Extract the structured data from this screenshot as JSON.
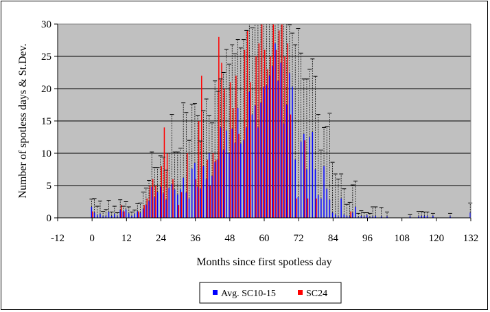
{
  "chart_data": {
    "type": "bar",
    "title": "",
    "xlabel": "Months since first spotless day",
    "ylabel": "Number of spotless days & St.Dev.",
    "xlim": [
      -12,
      132
    ],
    "ylim": [
      0,
      30
    ],
    "x_ticks": [
      -12,
      0,
      12,
      24,
      36,
      48,
      60,
      72,
      84,
      96,
      108,
      120,
      132
    ],
    "y_ticks": [
      0,
      5,
      10,
      15,
      20,
      25,
      30
    ],
    "grid": "horizontal",
    "legend": "bottom",
    "background_color": "#c0c0c0",
    "series": [
      {
        "name": "Avg. SC10-15",
        "color": "#0000ff",
        "error_bars": true,
        "x": [
          0,
          1,
          2,
          3,
          4,
          5,
          6,
          7,
          8,
          9,
          10,
          11,
          12,
          13,
          14,
          15,
          16,
          17,
          18,
          19,
          20,
          21,
          22,
          23,
          24,
          25,
          26,
          27,
          28,
          29,
          30,
          31,
          32,
          33,
          34,
          35,
          36,
          37,
          38,
          39,
          40,
          41,
          42,
          43,
          44,
          45,
          46,
          47,
          48,
          49,
          50,
          51,
          52,
          53,
          54,
          55,
          56,
          57,
          58,
          59,
          60,
          61,
          62,
          63,
          64,
          65,
          66,
          67,
          68,
          69,
          70,
          71,
          72,
          73,
          74,
          75,
          76,
          77,
          78,
          79,
          80,
          81,
          82,
          83,
          84,
          85,
          86,
          87,
          88,
          89,
          90,
          91,
          92,
          93,
          94,
          95,
          96,
          97,
          98,
          99,
          100,
          101,
          102,
          103,
          104,
          105,
          106,
          107,
          108,
          109,
          110,
          111,
          112,
          113,
          114,
          115,
          116,
          117,
          118,
          119,
          120,
          121,
          122,
          123,
          124,
          125,
          126,
          127,
          128,
          129,
          130,
          131,
          132
        ],
        "values": [
          1.7,
          0.8,
          0.4,
          0.6,
          0.2,
          0.3,
          0.9,
          0.3,
          0.6,
          0.2,
          1.2,
          1.0,
          1.3,
          0.7,
          0.3,
          0.6,
          1.0,
          0.8,
          1.4,
          2.0,
          2.6,
          4.8,
          3.2,
          4.0,
          4.8,
          3.8,
          2.8,
          4.6,
          5.2,
          4.4,
          3.6,
          4.4,
          6.2,
          3.9,
          3.0,
          7.6,
          8.5,
          4.8,
          4.5,
          8.0,
          6.0,
          10.0,
          6.5,
          8.6,
          9.0,
          14.0,
          10.5,
          13.5,
          10.0,
          13.8,
          11.6,
          17.0,
          11.5,
          12.0,
          14.0,
          19.5,
          16.0,
          17.4,
          14.0,
          17.8,
          20.2,
          20.5,
          22.0,
          23.5,
          27.0,
          21.2,
          24.0,
          14.6,
          17.5,
          22.4,
          20.3,
          9.0,
          3.2,
          11.8,
          13.0,
          7.5,
          12.5,
          13.3,
          7.5,
          3.5,
          3.0,
          8.0,
          4.5,
          2.8,
          0.8,
          0.5,
          0.2,
          3.0,
          0.5,
          0.3,
          0.2,
          0.8,
          1.7,
          0.1,
          0.3,
          0.2,
          0.4,
          0.1,
          0.2,
          0.3,
          0,
          0.2,
          0,
          0.2,
          0,
          0,
          0,
          0,
          0,
          0,
          0,
          0.2,
          0,
          0,
          0.2,
          0.3,
          0.3,
          0.3,
          0,
          0.3,
          0,
          0,
          0,
          0,
          0,
          0.2,
          0,
          0,
          0,
          0,
          0,
          0,
          0.8
        ],
        "errors": [
          1.2,
          2.2,
          1.4,
          2.0,
          0.8,
          1.0,
          1.8,
          0.6,
          1.2,
          0.6,
          1.6,
          0.8,
          1.2,
          1.0,
          0.6,
          0.6,
          1.2,
          1.5,
          2.6,
          2.6,
          3.2,
          5.4,
          4.6,
          3.8,
          4.8,
          5.6,
          4.6,
          5.4,
          10.8,
          5.8,
          6.6,
          6.4,
          11.6,
          12.4,
          9.0,
          10.0,
          9.2,
          11.0,
          7.4,
          8.6,
          12.4,
          5.8,
          8.2,
          12.6,
          10.6,
          7.5,
          12.0,
          12.6,
          13.8,
          13.0,
          13.8,
          10.6,
          14.8,
          15.6,
          15.0,
          11.6,
          13.4,
          14.6,
          16.2,
          14.2,
          15.3,
          13.2,
          10.5,
          14.6,
          5.0,
          12.6,
          11.8,
          18.8,
          13.0,
          7.5,
          8.3,
          17.8,
          26.1,
          13.7,
          8.5,
          14.0,
          10.5,
          11.3,
          14.4,
          12.5,
          7.5,
          6.0,
          9.6,
          13.4,
          7.8,
          6.3,
          5.8,
          3.8,
          4.0,
          1.8,
          2.2,
          4.3,
          4.0,
          0.6,
          0.8,
          0.6,
          0.4,
          0.6,
          1.5,
          1.4,
          0,
          1.4,
          0,
          0.7,
          0,
          0,
          0,
          0,
          0,
          0,
          0,
          0.3,
          0,
          0,
          0.8,
          0.7,
          0.6,
          0.6,
          0,
          0.4,
          0,
          0,
          0,
          0,
          0,
          0.5,
          0,
          0,
          0,
          0,
          0,
          0,
          1.5
        ]
      },
      {
        "name": "SC24",
        "color": "#ff0000",
        "x": [
          0,
          1,
          2,
          3,
          4,
          5,
          6,
          7,
          8,
          9,
          10,
          11,
          12,
          13,
          14,
          15,
          16,
          17,
          18,
          19,
          20,
          21,
          22,
          23,
          24,
          25,
          26,
          27,
          28,
          29,
          30,
          31,
          32,
          33,
          34,
          35,
          36,
          37,
          38,
          39,
          40,
          41,
          42,
          43,
          44,
          45,
          46,
          47,
          48,
          49,
          50,
          51,
          52,
          53,
          54,
          55,
          56,
          57,
          58,
          59,
          60,
          61,
          62,
          63,
          64,
          65,
          66,
          67,
          68,
          69,
          70,
          71,
          72,
          73,
          74,
          75,
          76,
          77,
          78,
          79,
          80,
          81,
          82,
          83,
          84,
          85,
          86,
          87,
          88,
          89,
          90,
          91,
          92,
          93,
          94,
          95,
          96,
          97,
          98,
          99,
          100,
          101,
          102,
          103,
          104,
          105,
          106,
          107,
          108,
          109,
          110,
          111,
          112,
          113,
          114,
          115,
          116,
          117,
          118,
          119,
          120,
          121,
          122,
          123,
          124,
          125,
          126,
          127,
          128,
          129,
          130,
          131,
          132
        ],
        "values": [
          1,
          0,
          0,
          0,
          0,
          0,
          0,
          0,
          0,
          0,
          2,
          1,
          0,
          0,
          0,
          0,
          1,
          0,
          2,
          3,
          5,
          6,
          5,
          0,
          8,
          14,
          10,
          0,
          6,
          0,
          2,
          4,
          0,
          10,
          0,
          0,
          6,
          15,
          22,
          0,
          9,
          5,
          10,
          9,
          28,
          24,
          20,
          0,
          21,
          17,
          22,
          13,
          0,
          26,
          29,
          21,
          0,
          25,
          27,
          31,
          26,
          23,
          25,
          31,
          26,
          29,
          31,
          25,
          27,
          16,
          0,
          3,
          0,
          0,
          12,
          3,
          0,
          0,
          3,
          0,
          0,
          0,
          0,
          0,
          0,
          0,
          0,
          0,
          0,
          0,
          1,
          0,
          0,
          0,
          0,
          0,
          0,
          0,
          0,
          0,
          0,
          0,
          0,
          0,
          0,
          0,
          0,
          0,
          0,
          0,
          0,
          0,
          0,
          0,
          0,
          0,
          0,
          0,
          0,
          0,
          0,
          0,
          0,
          0,
          0,
          0,
          0,
          0,
          0,
          0,
          0,
          0,
          0
        ]
      }
    ]
  }
}
